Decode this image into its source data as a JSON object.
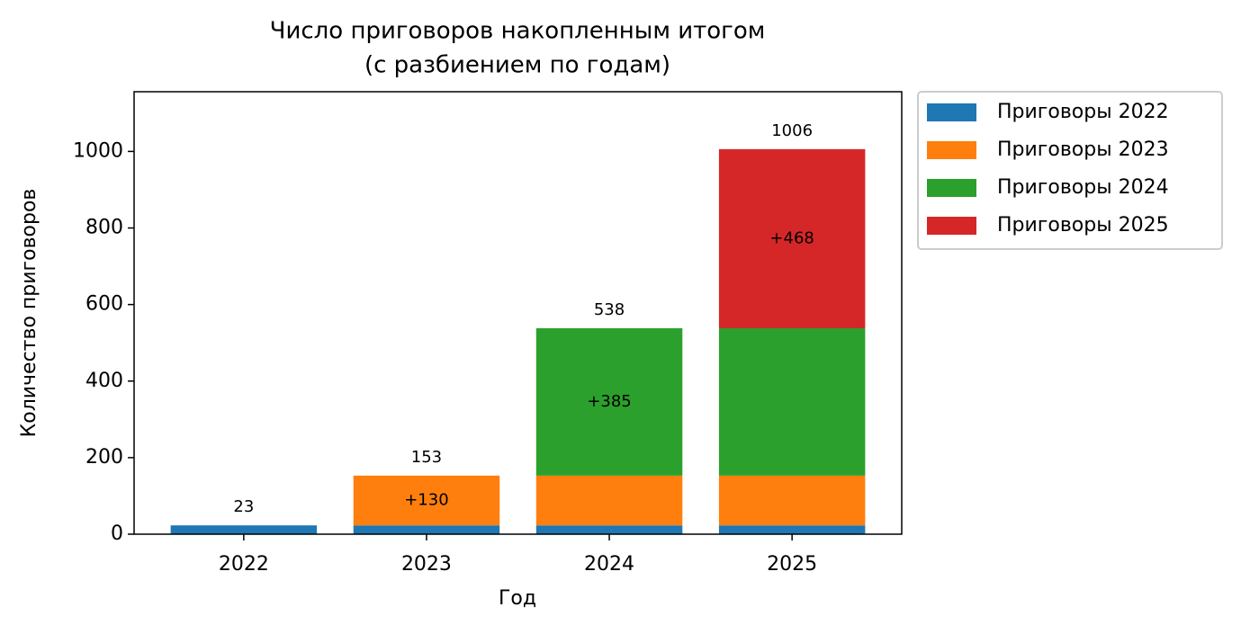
{
  "chart_data": {
    "type": "stacked-bar",
    "title": "Число приговоров накопленным итогом",
    "subtitle": "(с разбиением по годам)",
    "x_label": "Год",
    "y_label": "Количество приговоров",
    "categories": [
      "2022",
      "2023",
      "2024",
      "2025"
    ],
    "series": [
      {
        "name": "Приговоры 2022",
        "color": "#1f77b4",
        "values": [
          23,
          23,
          23,
          23
        ]
      },
      {
        "name": "Приговоры 2023",
        "color": "#ff7f0e",
        "values": [
          null,
          130,
          130,
          130
        ],
        "value_labels": [
          null,
          "+130",
          null,
          null
        ]
      },
      {
        "name": "Приговоры 2024",
        "color": "#2ca02c",
        "values": [
          null,
          null,
          385,
          385
        ],
        "value_labels": [
          null,
          null,
          "+385",
          null
        ]
      },
      {
        "name": "Приговоры 2025",
        "color": "#d62728",
        "values": [
          null,
          null,
          null,
          468
        ],
        "value_labels": [
          null,
          null,
          null,
          "+468"
        ]
      }
    ],
    "totals": [
      23,
      153,
      538,
      1006
    ],
    "ylim": [
      0,
      1156
    ],
    "yticks": [
      0,
      200,
      400,
      600,
      800,
      1000
    ],
    "grid": false,
    "legend": "outside-upper-right"
  }
}
